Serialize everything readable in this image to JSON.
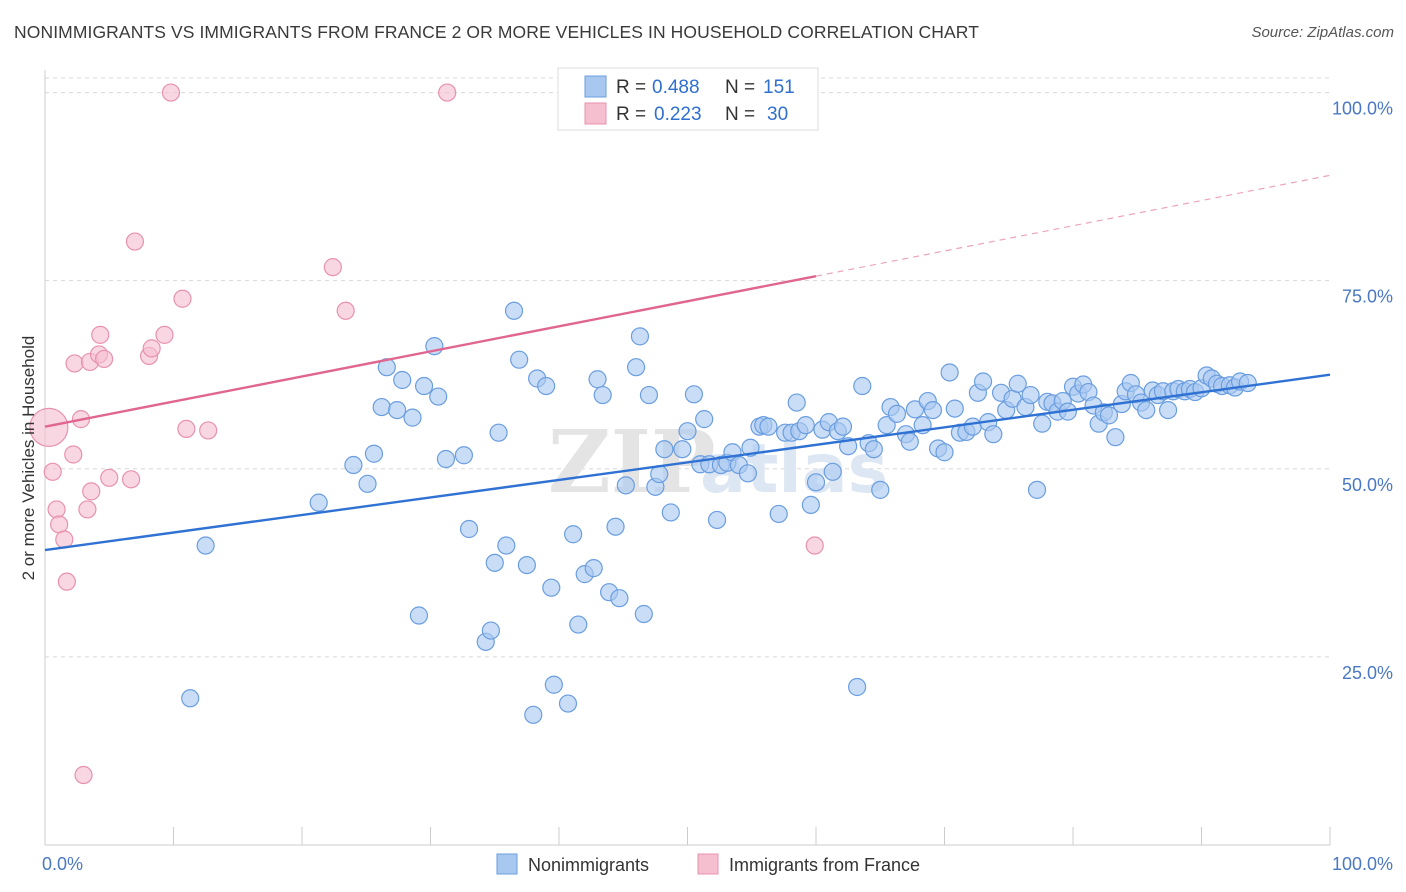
{
  "title": "NONIMMIGRANTS VS IMMIGRANTS FROM FRANCE 2 OR MORE VEHICLES IN HOUSEHOLD CORRELATION CHART",
  "source": "Source: ZipAtlas.com",
  "colors": {
    "blue_fill": "#a9c8f0",
    "blue_stroke": "#6a9ee0",
    "blue_line": "#2f72d3",
    "pink_fill": "#f6bfd0",
    "pink_stroke": "#e892ad",
    "pink_line": "#e06690",
    "tick_text": "#4a78c2",
    "grid": "#d8d8d8"
  },
  "legend": {
    "r_label": "R =",
    "n_label": "N =",
    "series_stats": [
      {
        "r": "0.488",
        "n": "151"
      },
      {
        "r": "0.223",
        "n": "30"
      }
    ]
  },
  "watermark": {
    "zip": "ZIP",
    "atlas": "atlas"
  },
  "chart_data": {
    "type": "scatter",
    "title": "NONIMMIGRANTS VS IMMIGRANTS FROM FRANCE 2 OR MORE VEHICLES IN HOUSEHOLD CORRELATION CHART",
    "xlabel": "",
    "ylabel": "2 or more Vehicles in Household",
    "xlim": [
      0,
      100
    ],
    "ylim": [
      0,
      103
    ],
    "x_tick_labels": [
      "0.0%",
      "100.0%"
    ],
    "y_ticks": [
      25,
      50,
      75,
      100
    ],
    "y_tick_labels": [
      "25.0%",
      "50.0%",
      "75.0%",
      "100.0%"
    ],
    "grid": true,
    "legend_position": "bottom",
    "series": [
      {
        "name": "Nonimmigrants",
        "r": 0.488,
        "n": 151,
        "trend": {
          "x0": 0,
          "y0": 39.2,
          "x1": 100,
          "y1": 62.5
        },
        "points": [
          [
            11.3,
            19.5
          ],
          [
            12.5,
            39.8
          ],
          [
            21.3,
            45.5
          ],
          [
            24.0,
            50.5
          ],
          [
            25.1,
            48.0
          ],
          [
            25.6,
            52.0
          ],
          [
            26.2,
            58.2
          ],
          [
            26.6,
            63.5
          ],
          [
            27.4,
            57.8
          ],
          [
            27.8,
            61.8
          ],
          [
            28.6,
            56.8
          ],
          [
            29.1,
            30.5
          ],
          [
            29.5,
            61.0
          ],
          [
            30.3,
            66.3
          ],
          [
            30.6,
            59.6
          ],
          [
            31.2,
            51.3
          ],
          [
            32.6,
            51.8
          ],
          [
            33.0,
            42.0
          ],
          [
            34.3,
            27.0
          ],
          [
            34.7,
            28.5
          ],
          [
            35.0,
            37.5
          ],
          [
            35.3,
            54.8
          ],
          [
            35.9,
            39.8
          ],
          [
            36.5,
            71.0
          ],
          [
            36.9,
            64.5
          ],
          [
            37.5,
            37.2
          ],
          [
            38.0,
            17.3
          ],
          [
            38.3,
            62.0
          ],
          [
            39.0,
            61.0
          ],
          [
            39.4,
            34.2
          ],
          [
            39.6,
            21.3
          ],
          [
            40.7,
            18.8
          ],
          [
            41.1,
            41.3
          ],
          [
            41.5,
            29.3
          ],
          [
            42.0,
            36.0
          ],
          [
            42.7,
            36.8
          ],
          [
            43.0,
            61.9
          ],
          [
            43.4,
            59.8
          ],
          [
            43.9,
            33.6
          ],
          [
            44.4,
            42.3
          ],
          [
            44.7,
            32.8
          ],
          [
            45.2,
            47.8
          ],
          [
            46.0,
            63.5
          ],
          [
            46.3,
            67.6
          ],
          [
            46.6,
            30.7
          ],
          [
            47.0,
            59.8
          ],
          [
            47.5,
            47.6
          ],
          [
            47.8,
            49.3
          ],
          [
            48.2,
            52.6
          ],
          [
            48.7,
            44.2
          ],
          [
            49.6,
            52.6
          ],
          [
            50.0,
            55.0
          ],
          [
            50.5,
            59.9
          ],
          [
            51.0,
            50.6
          ],
          [
            51.3,
            56.6
          ],
          [
            51.7,
            50.6
          ],
          [
            52.3,
            43.2
          ],
          [
            52.6,
            50.5
          ],
          [
            53.1,
            50.8
          ],
          [
            53.5,
            52.2
          ],
          [
            54.0,
            50.5
          ],
          [
            54.7,
            49.4
          ],
          [
            54.9,
            52.8
          ],
          [
            55.6,
            55.6
          ],
          [
            55.9,
            55.8
          ],
          [
            56.3,
            55.6
          ],
          [
            57.1,
            44.0
          ],
          [
            57.6,
            54.8
          ],
          [
            58.1,
            54.8
          ],
          [
            58.5,
            58.8
          ],
          [
            58.7,
            55.0
          ],
          [
            59.2,
            55.8
          ],
          [
            59.6,
            45.2
          ],
          [
            60.0,
            48.2
          ],
          [
            60.5,
            55.2
          ],
          [
            61.0,
            56.2
          ],
          [
            61.3,
            49.6
          ],
          [
            61.7,
            55.0
          ],
          [
            62.1,
            55.6
          ],
          [
            62.5,
            53.0
          ],
          [
            63.2,
            21.0
          ],
          [
            63.6,
            61.0
          ],
          [
            64.1,
            53.4
          ],
          [
            64.5,
            52.6
          ],
          [
            65.0,
            47.2
          ],
          [
            65.5,
            55.8
          ],
          [
            65.8,
            58.2
          ],
          [
            66.3,
            57.3
          ],
          [
            67.0,
            54.6
          ],
          [
            67.3,
            53.6
          ],
          [
            67.7,
            57.9
          ],
          [
            68.3,
            55.8
          ],
          [
            68.7,
            59.0
          ],
          [
            69.1,
            57.8
          ],
          [
            69.5,
            52.7
          ],
          [
            70.0,
            52.2
          ],
          [
            70.4,
            62.8
          ],
          [
            70.8,
            58.0
          ],
          [
            71.2,
            54.8
          ],
          [
            71.7,
            54.9
          ],
          [
            72.2,
            55.6
          ],
          [
            72.6,
            60.1
          ],
          [
            73.0,
            61.6
          ],
          [
            73.4,
            56.2
          ],
          [
            73.8,
            54.6
          ],
          [
            74.4,
            60.1
          ],
          [
            74.8,
            57.8
          ],
          [
            75.3,
            59.3
          ],
          [
            75.7,
            61.3
          ],
          [
            76.3,
            58.2
          ],
          [
            76.7,
            59.8
          ],
          [
            77.2,
            47.2
          ],
          [
            77.6,
            56.0
          ],
          [
            78.0,
            58.9
          ],
          [
            78.4,
            58.7
          ],
          [
            78.8,
            57.6
          ],
          [
            79.2,
            59.0
          ],
          [
            79.6,
            57.6
          ],
          [
            80.0,
            60.9
          ],
          [
            80.4,
            60.0
          ],
          [
            80.8,
            61.2
          ],
          [
            81.2,
            60.2
          ],
          [
            81.6,
            58.4
          ],
          [
            82.0,
            56.0
          ],
          [
            82.4,
            57.5
          ],
          [
            82.8,
            57.1
          ],
          [
            83.3,
            54.2
          ],
          [
            83.8,
            58.6
          ],
          [
            84.1,
            60.3
          ],
          [
            84.5,
            61.4
          ],
          [
            84.9,
            59.9
          ],
          [
            85.3,
            58.8
          ],
          [
            85.7,
            57.8
          ],
          [
            86.2,
            60.4
          ],
          [
            86.6,
            59.8
          ],
          [
            87.0,
            60.3
          ],
          [
            87.4,
            57.8
          ],
          [
            87.8,
            60.3
          ],
          [
            88.2,
            60.6
          ],
          [
            88.7,
            60.3
          ],
          [
            89.1,
            60.6
          ],
          [
            89.5,
            60.2
          ],
          [
            90.0,
            60.7
          ],
          [
            90.4,
            62.4
          ],
          [
            90.8,
            62.0
          ],
          [
            91.2,
            61.3
          ],
          [
            91.6,
            61.0
          ],
          [
            92.2,
            61.1
          ],
          [
            92.6,
            60.8
          ],
          [
            93.0,
            61.6
          ],
          [
            93.6,
            61.4
          ]
        ]
      },
      {
        "name": "Immigrants from France",
        "r": 0.223,
        "n": 30,
        "trend": {
          "x0": 0,
          "y0": 55.6,
          "x1": 60,
          "y1": 75.6,
          "dashed_to_x": 100,
          "dashed_to_y": 89.0
        },
        "points": [
          [
            0.3,
            55.5
          ],
          [
            0.6,
            49.6
          ],
          [
            0.9,
            44.6
          ],
          [
            1.1,
            42.6
          ],
          [
            1.5,
            40.6
          ],
          [
            1.7,
            35.0
          ],
          [
            2.2,
            51.9
          ],
          [
            2.3,
            64.0
          ],
          [
            2.8,
            56.6
          ],
          [
            3.0,
            9.3
          ],
          [
            3.3,
            44.6
          ],
          [
            3.5,
            64.2
          ],
          [
            3.6,
            47.0
          ],
          [
            4.2,
            65.2
          ],
          [
            4.3,
            67.8
          ],
          [
            4.6,
            64.6
          ],
          [
            5.0,
            48.8
          ],
          [
            6.7,
            48.6
          ],
          [
            7.0,
            80.2
          ],
          [
            8.1,
            65.0
          ],
          [
            8.3,
            66.0
          ],
          [
            9.3,
            67.8
          ],
          [
            9.8,
            100.0
          ],
          [
            10.7,
            72.6
          ],
          [
            11.0,
            55.3
          ],
          [
            12.7,
            55.1
          ],
          [
            22.4,
            76.8
          ],
          [
            23.4,
            71.0
          ],
          [
            31.3,
            100.0
          ],
          [
            59.9,
            39.8
          ]
        ]
      }
    ]
  }
}
